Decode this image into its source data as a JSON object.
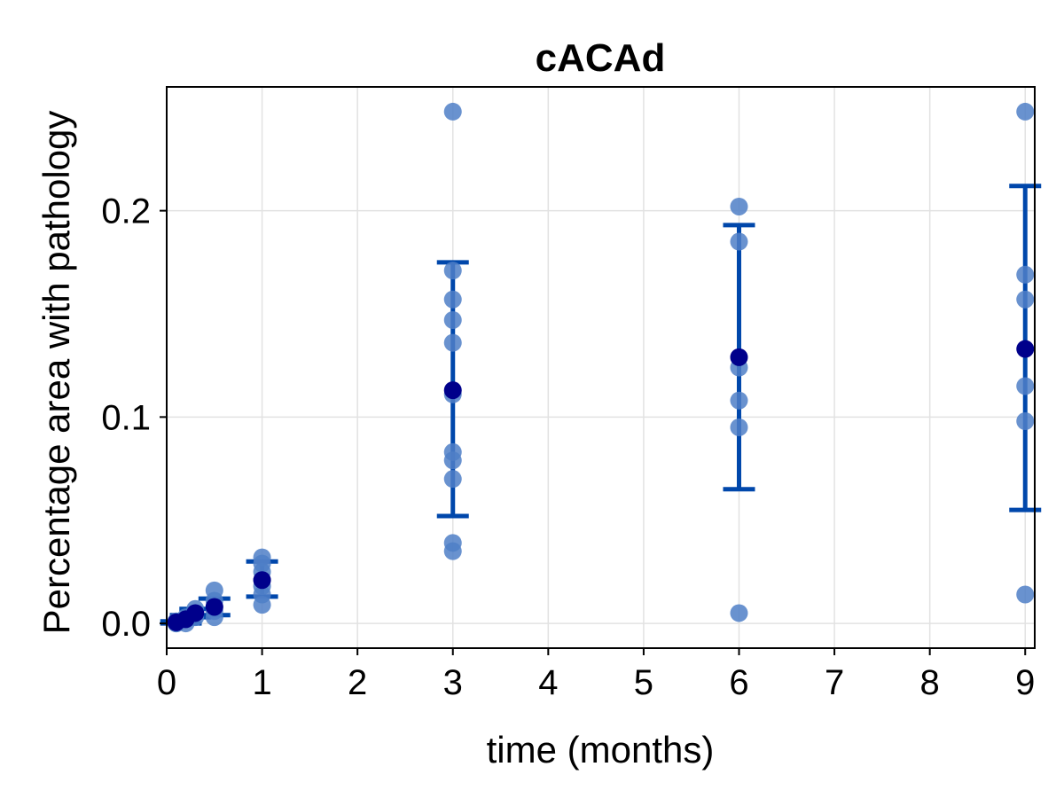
{
  "chart_data": {
    "type": "scatter",
    "title": "cACAd",
    "xlabel": "time (months)",
    "ylabel": "Percentage area with pathology",
    "xlim": [
      0,
      9.1
    ],
    "ylim": [
      -0.012,
      0.26
    ],
    "x_ticks": [
      0,
      1,
      2,
      3,
      4,
      5,
      6,
      7,
      8,
      9
    ],
    "x_tick_labels": [
      "0",
      "1",
      "2",
      "3",
      "4",
      "5",
      "6",
      "7",
      "8",
      "9"
    ],
    "y_ticks": [
      0.0,
      0.1,
      0.2
    ],
    "y_tick_labels": [
      "0.0",
      "0.1",
      "0.2"
    ],
    "grid": true,
    "colors": {
      "points": "#4f7fc7",
      "mean": "#00008b",
      "errorbar": "#0047ab"
    },
    "series": [
      {
        "kind": "observations",
        "points": [
          {
            "x": 0.1,
            "y": 0.0
          },
          {
            "x": 0.1,
            "y": 0.0
          },
          {
            "x": 0.1,
            "y": 0.001
          },
          {
            "x": 0.2,
            "y": 0.0
          },
          {
            "x": 0.2,
            "y": 0.002
          },
          {
            "x": 0.2,
            "y": 0.003
          },
          {
            "x": 0.3,
            "y": 0.003
          },
          {
            "x": 0.3,
            "y": 0.005
          },
          {
            "x": 0.3,
            "y": 0.007
          },
          {
            "x": 0.5,
            "y": 0.003
          },
          {
            "x": 0.5,
            "y": 0.006
          },
          {
            "x": 0.5,
            "y": 0.008
          },
          {
            "x": 0.5,
            "y": 0.011
          },
          {
            "x": 0.5,
            "y": 0.016
          },
          {
            "x": 1,
            "y": 0.009
          },
          {
            "x": 1,
            "y": 0.014
          },
          {
            "x": 1,
            "y": 0.018
          },
          {
            "x": 1,
            "y": 0.021
          },
          {
            "x": 1,
            "y": 0.025
          },
          {
            "x": 1,
            "y": 0.029
          },
          {
            "x": 1,
            "y": 0.032
          },
          {
            "x": 3,
            "y": 0.248
          },
          {
            "x": 3,
            "y": 0.171
          },
          {
            "x": 3,
            "y": 0.157
          },
          {
            "x": 3,
            "y": 0.147
          },
          {
            "x": 3,
            "y": 0.136
          },
          {
            "x": 3,
            "y": 0.111
          },
          {
            "x": 3,
            "y": 0.083
          },
          {
            "x": 3,
            "y": 0.079
          },
          {
            "x": 3,
            "y": 0.07
          },
          {
            "x": 3,
            "y": 0.039
          },
          {
            "x": 3,
            "y": 0.035
          },
          {
            "x": 6,
            "y": 0.202
          },
          {
            "x": 6,
            "y": 0.185
          },
          {
            "x": 6,
            "y": 0.124
          },
          {
            "x": 6,
            "y": 0.108
          },
          {
            "x": 6,
            "y": 0.095
          },
          {
            "x": 6,
            "y": 0.005
          },
          {
            "x": 9,
            "y": 0.248
          },
          {
            "x": 9,
            "y": 0.169
          },
          {
            "x": 9,
            "y": 0.157
          },
          {
            "x": 9,
            "y": 0.115
          },
          {
            "x": 9,
            "y": 0.098
          },
          {
            "x": 9,
            "y": 0.014
          }
        ]
      },
      {
        "kind": "mean_with_errorbars",
        "points": [
          {
            "x": 0.1,
            "y": 0.0005,
            "low": 0.0,
            "high": 0.001
          },
          {
            "x": 0.2,
            "y": 0.002,
            "low": 0.0,
            "high": 0.004
          },
          {
            "x": 0.3,
            "y": 0.005,
            "low": 0.003,
            "high": 0.007
          },
          {
            "x": 0.5,
            "y": 0.008,
            "low": 0.004,
            "high": 0.012
          },
          {
            "x": 1,
            "y": 0.021,
            "low": 0.013,
            "high": 0.03
          },
          {
            "x": 3,
            "y": 0.113,
            "low": 0.052,
            "high": 0.175
          },
          {
            "x": 6,
            "y": 0.129,
            "low": 0.065,
            "high": 0.193
          },
          {
            "x": 9,
            "y": 0.133,
            "low": 0.055,
            "high": 0.212
          }
        ]
      }
    ]
  }
}
